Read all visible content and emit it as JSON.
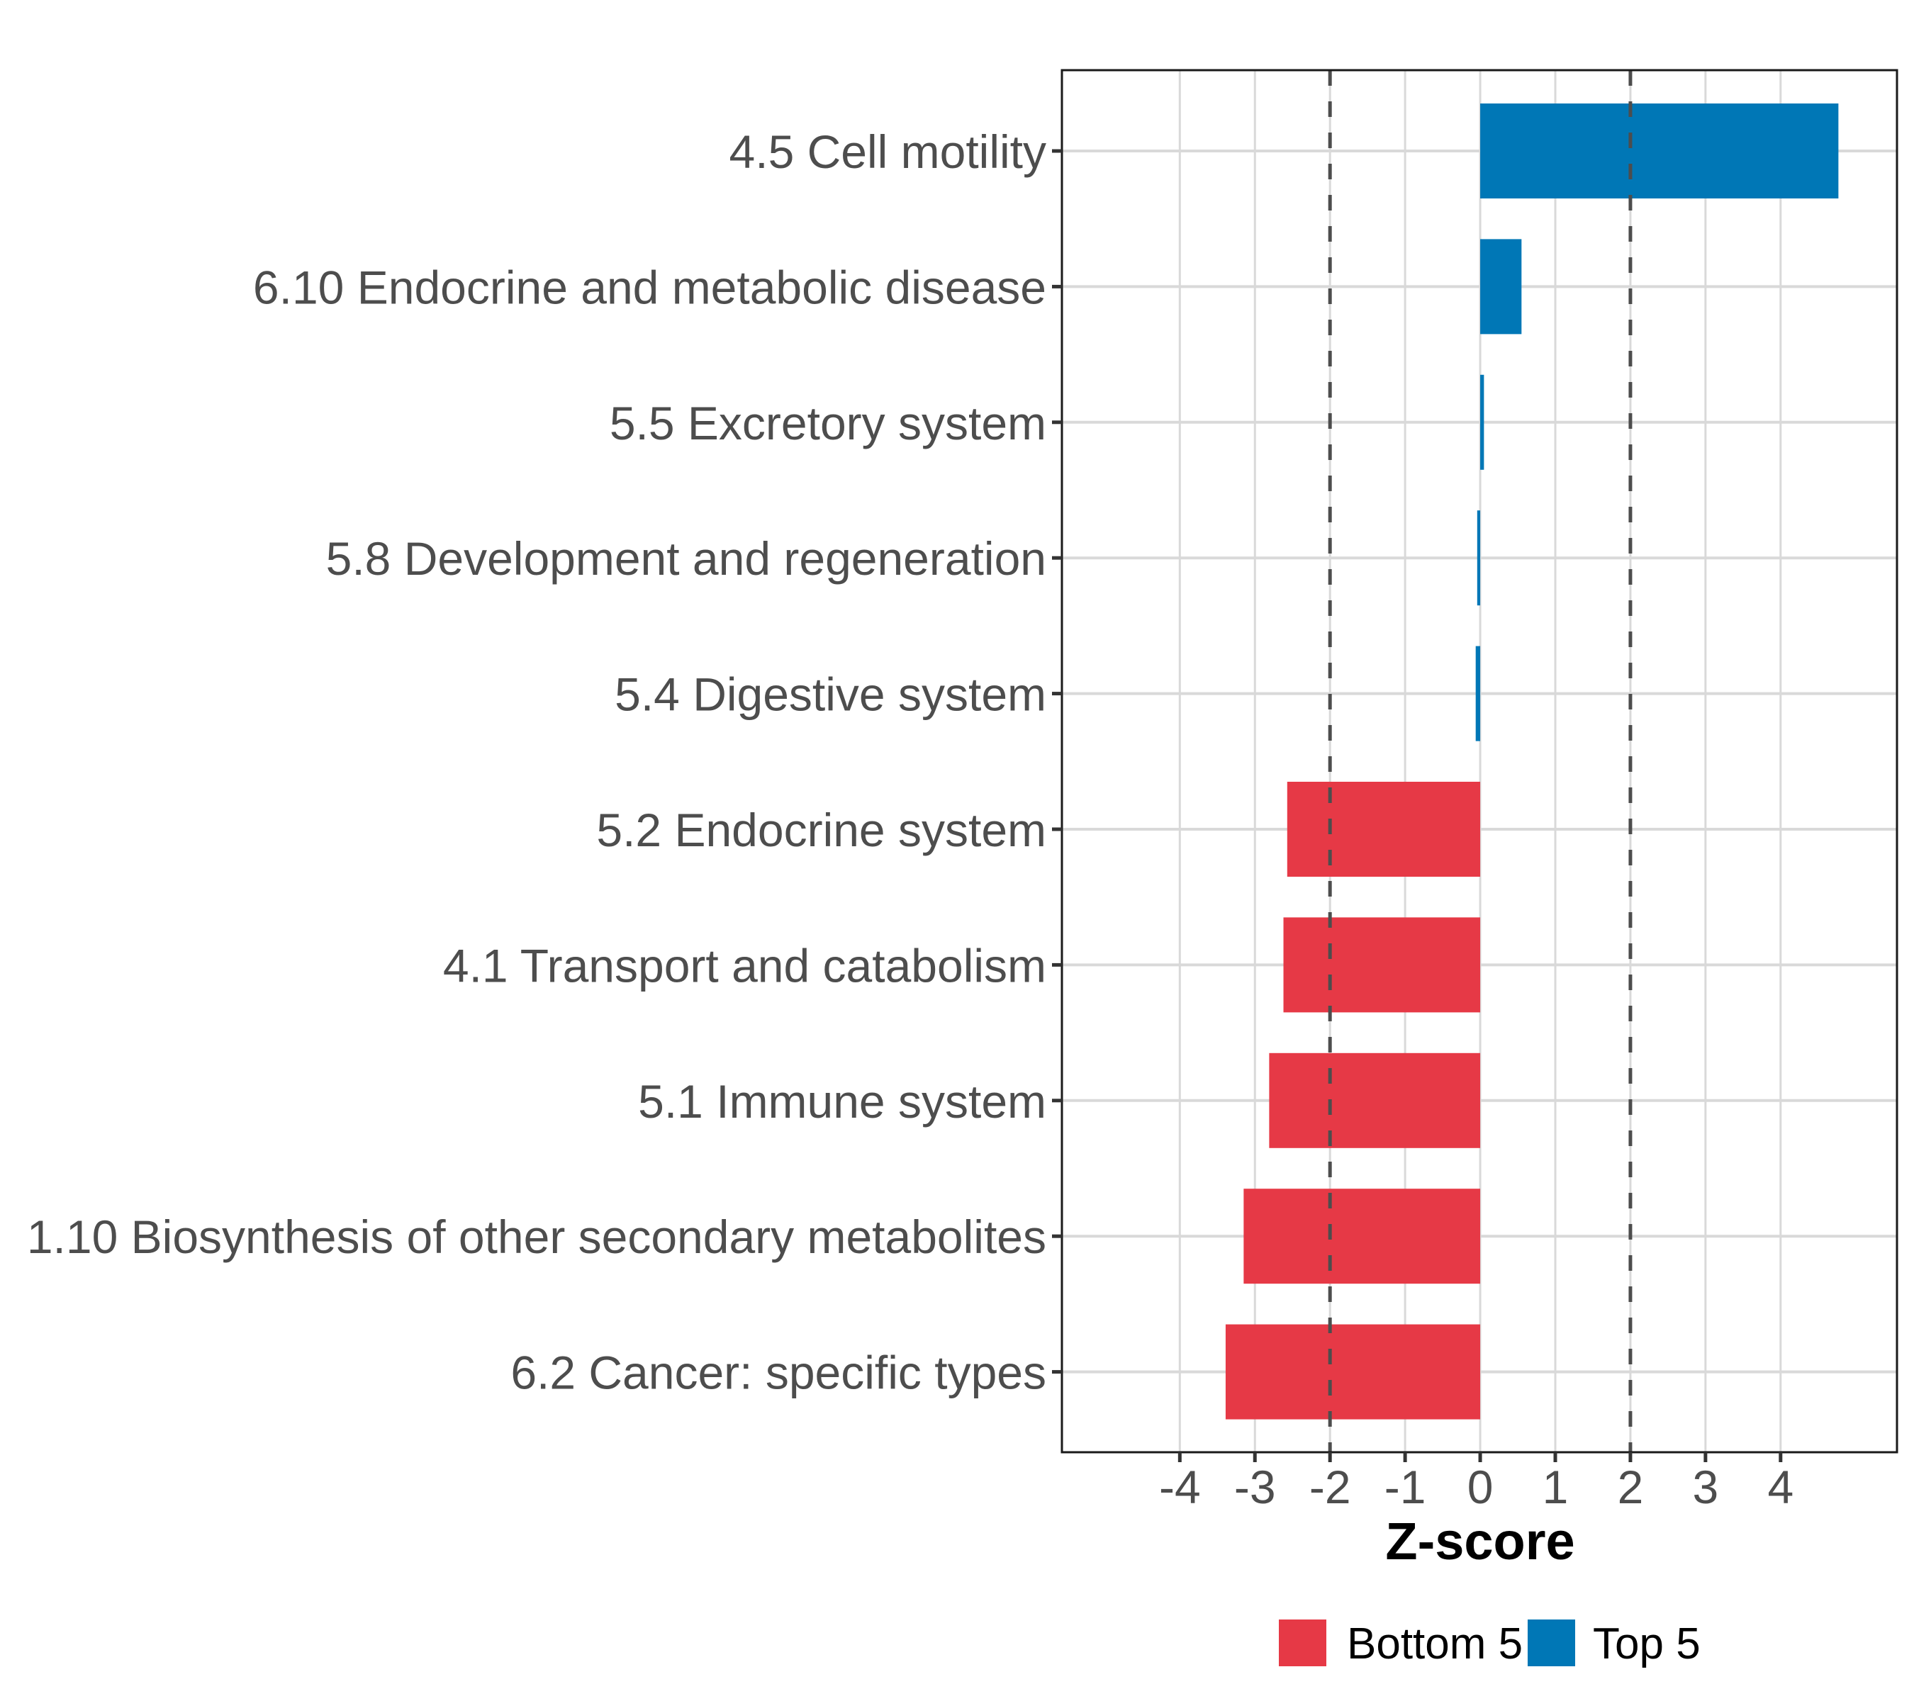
{
  "chart_data": {
    "type": "bar",
    "orientation": "horizontal",
    "title": "",
    "xlabel": "Z-score",
    "ylabel": "",
    "xlim": [
      -5.57,
      5.55
    ],
    "xticks": [
      -4,
      -3,
      -2,
      -1,
      0,
      1,
      2,
      3,
      4
    ],
    "xtick_labels": [
      "-4",
      "-3",
      "-2",
      "-1",
      "0",
      "1",
      "2",
      "3",
      "4"
    ],
    "grid": true,
    "reference_lines": [
      {
        "x": -2,
        "style": "dashed"
      },
      {
        "x": 2,
        "style": "dashed"
      }
    ],
    "categories": [
      "4.5 Cell motility",
      "6.10 Endocrine and metabolic disease",
      "5.5 Excretory system",
      "5.8 Development and regeneration",
      "5.4 Digestive system",
      "5.2 Endocrine system",
      "4.1 Transport and catabolism",
      "5.1 Immune system",
      "1.10 Biosynthesis of other secondary metabolites",
      "6.2 Cancer: specific types"
    ],
    "values": [
      4.77,
      0.55,
      0.05,
      -0.04,
      -0.06,
      -2.57,
      -2.62,
      -2.81,
      -3.15,
      -3.39
    ],
    "groups": [
      "Top 5",
      "Top 5",
      "Top 5",
      "Top 5",
      "Top 5",
      "Bottom 5",
      "Bottom 5",
      "Bottom 5",
      "Bottom 5",
      "Bottom 5"
    ],
    "legend": {
      "position": "bottom",
      "entries": [
        {
          "label": "Bottom 5",
          "color": "#E63946"
        },
        {
          "label": "Top 5",
          "color": "#0077B6"
        }
      ]
    },
    "colors": {
      "Top 5": "#0077B6",
      "Bottom 5": "#E63946"
    }
  }
}
